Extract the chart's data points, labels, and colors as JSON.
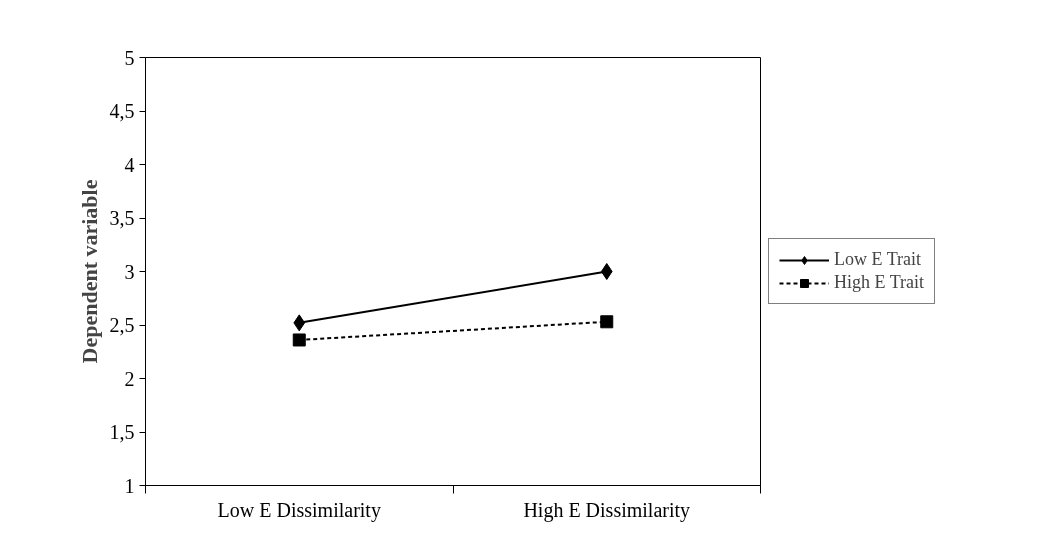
{
  "chart_data": {
    "type": "line",
    "ylabel": "Dependent variable",
    "categories": [
      "Low E Dissimilarity",
      "High E Dissimilarity"
    ],
    "series": [
      {
        "name": "Low E Trait",
        "color": "#000000",
        "values": [
          2.52,
          3.0
        ],
        "marker": "diamond",
        "line_style": "solid"
      },
      {
        "name": "High E Trait",
        "color": "#000000",
        "values": [
          2.36,
          2.53
        ],
        "marker": "square",
        "line_style": "dashed"
      }
    ],
    "ylim": [
      1,
      5
    ],
    "yticks": [
      1,
      {
        "value": 1.5,
        "label": "1,5"
      },
      2,
      {
        "value": 2.5,
        "label": "2,5"
      },
      3,
      {
        "value": 3.5,
        "label": "3,5"
      },
      4,
      {
        "value": 4.5,
        "label": "4,5"
      },
      5
    ],
    "grid": false,
    "legend": "right"
  }
}
